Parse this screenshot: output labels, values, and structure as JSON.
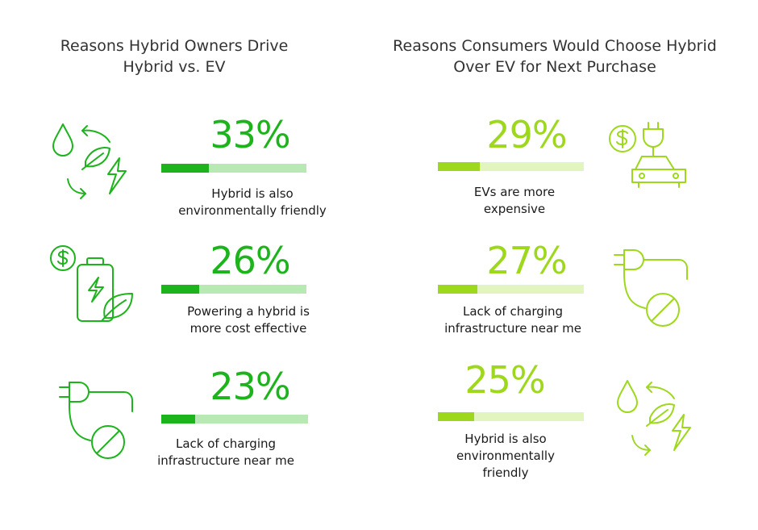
{
  "colors": {
    "left_accent": "#1db31d",
    "left_track": "#b8e8b4",
    "right_accent": "#9ed81c",
    "right_track": "#e2f5be"
  },
  "chart_data": [
    {
      "type": "bar",
      "title": "Reasons Hybrid Owners Drive Hybrid vs. EV",
      "categories": [
        "Hybrid is also environmentally friendly",
        "Powering a hybrid is more cost effective",
        "Lack of charging infrastructure near me"
      ],
      "values": [
        33,
        26,
        23
      ],
      "value_labels": [
        "33%",
        "26%",
        "23%"
      ],
      "label_lines": [
        [
          "Hybrid is also",
          "environmentally friendly"
        ],
        [
          "Powering a hybrid is",
          "more cost effective"
        ],
        [
          "Lack of charging",
          "infrastructure near me"
        ]
      ],
      "icons": [
        "eco-cycle-icon",
        "battery-cost-icon",
        "no-charging-icon"
      ],
      "ylim": [
        0,
        100
      ]
    },
    {
      "type": "bar",
      "title": "Reasons Consumers Would Choose Hybrid Over EV for Next Purchase",
      "categories": [
        "EVs are more expensive",
        "Lack of charging infrastructure near me",
        "Hybrid is also environmentally friendly"
      ],
      "values": [
        29,
        27,
        25
      ],
      "value_labels": [
        "29%",
        "27%",
        "25%"
      ],
      "label_lines": [
        [
          "EVs are more",
          "expensive"
        ],
        [
          "Lack of charging",
          "infrastructure near me"
        ],
        [
          "Hybrid is also",
          "environmentally friendly"
        ]
      ],
      "icons": [
        "ev-cost-icon",
        "no-charging-icon",
        "eco-cycle-icon"
      ],
      "ylim": [
        0,
        100
      ]
    }
  ],
  "titles": {
    "left_line1": "Reasons Hybrid Owners Drive",
    "left_line2": "Hybrid vs. EV",
    "right_line1": "Reasons Consumers Would Choose Hybrid",
    "right_line2": "Over EV for Next Purchase"
  }
}
